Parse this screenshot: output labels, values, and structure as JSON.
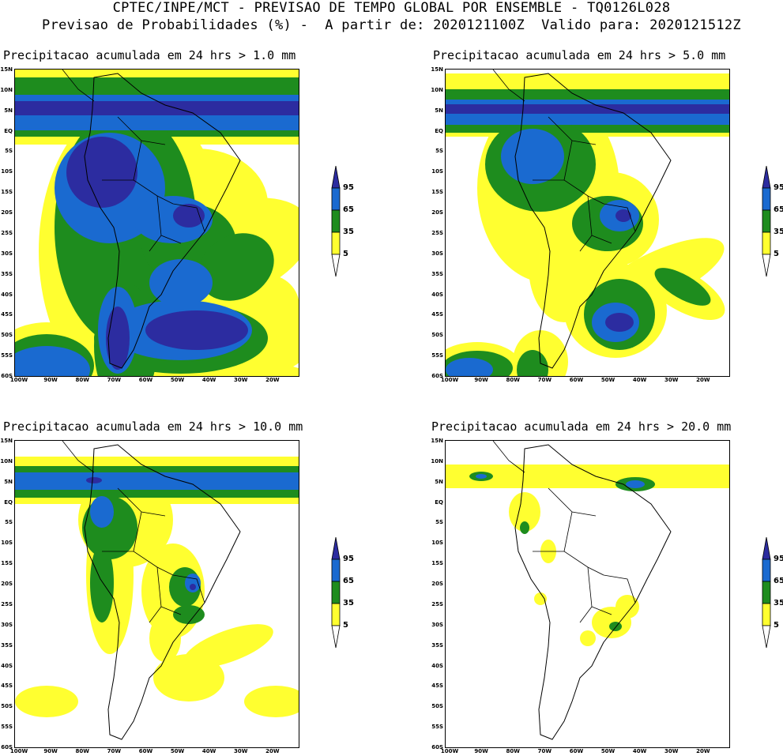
{
  "header": {
    "line1": "CPTEC/INPE/MCT - PREVISAO DE TEMPO GLOBAL POR ENSEMBLE - TQ0126L028",
    "line2": "Previsao de Probabilidades (%) -  A partir de: 2020121100Z  Valido para: 2020121512Z"
  },
  "panels": [
    {
      "title": "Precipitacao acumulada em 24 hrs > 1.0 mm"
    },
    {
      "title": "Precipitacao acumulada em 24 hrs > 5.0 mm"
    },
    {
      "title": "Precipitacao acumulada em 24 hrs > 10.0 mm"
    },
    {
      "title": "Precipitacao acumulada em 24 hrs > 20.0 mm"
    }
  ],
  "lat_labels": [
    "15N",
    "10N",
    "5N",
    "EQ",
    "5S",
    "10S",
    "15S",
    "20S",
    "25S",
    "30S",
    "35S",
    "40S",
    "45S",
    "50S",
    "55S",
    "60S"
  ],
  "lon_labels": [
    "100W",
    "90W",
    "80W",
    "70W",
    "60W",
    "50W",
    "40W",
    "30W",
    "20W"
  ],
  "legend": {
    "labels": [
      "95",
      "65",
      "35",
      "5"
    ],
    "colors": {
      "level_95": "#2c2ca0",
      "level_65": "#1a6ad0",
      "level_35": "#1e8c1e",
      "level_5": "#ffff30"
    }
  }
}
